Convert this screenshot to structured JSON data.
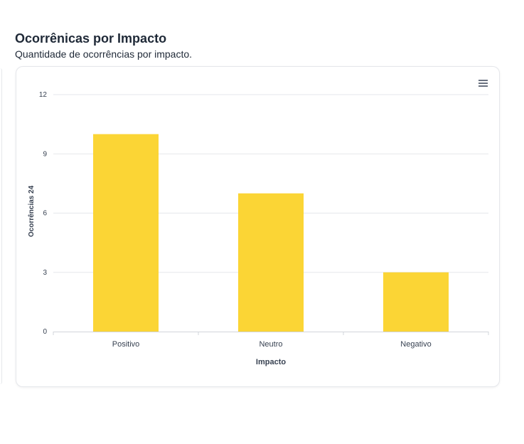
{
  "header": {
    "title": "Ocorrênicas por Impacto",
    "subtitle": "Quantidade de ocorrências por impacto."
  },
  "toolbar": {
    "menu_icon": "hamburger-menu-icon"
  },
  "colors": {
    "bar": "#fbd535",
    "grid": "#e5e7eb",
    "axis_text": "#374151"
  },
  "chart_data": {
    "type": "bar",
    "categories": [
      "Positivo",
      "Neutro",
      "Negativo"
    ],
    "values": [
      10,
      7,
      3
    ],
    "xlabel": "Impacto",
    "ylabel": "Ocorrências 24",
    "ylim": [
      0,
      12
    ],
    "yticks": [
      "0",
      "3",
      "6",
      "9",
      "12"
    ],
    "grid": true
  }
}
